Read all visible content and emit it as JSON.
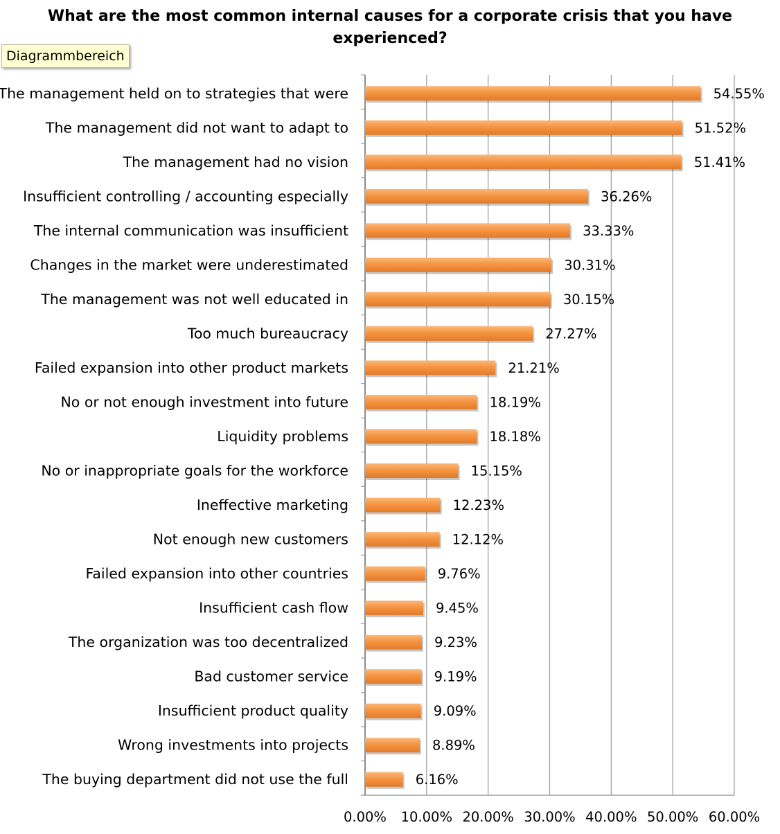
{
  "tooltip": "Diagrammbereich",
  "chart_data": {
    "type": "bar",
    "orientation": "horizontal",
    "title": "What are the most common internal causes for a corporate crisis that you have experienced?",
    "title_lines": [
      "What are the most common internal causes for a corporate crisis that you have",
      "experienced?"
    ],
    "xlabel": "",
    "ylabel": "",
    "xlim": [
      0,
      60
    ],
    "grid": true,
    "bar_color": "#f59541",
    "ticks": [
      "0.00%",
      "10.00%",
      "20.00%",
      "30.00%",
      "40.00%",
      "50.00%",
      "60.00%"
    ],
    "categories": [
      "The management held on to strategies that were",
      "The management did not want to adapt to",
      "The management had no vision",
      "Insufficient controlling / accounting especially",
      "The internal communication was insufficient",
      "Changes in the market were underestimated",
      "The management was not well educated in",
      "Too much bureaucracy",
      "Failed expansion into other product markets",
      "No or not enough investment into future",
      "Liquidity problems",
      "No or inappropriate goals for the workforce",
      "Ineffective marketing",
      "Not enough new customers",
      "Failed expansion into other countries",
      "Insufficient cash flow",
      "The organization was too decentralized",
      "Bad customer service",
      "Insufficient product quality",
      "Wrong investments into projects",
      "The buying department did not use the full"
    ],
    "values": [
      54.55,
      51.52,
      51.41,
      36.26,
      33.33,
      30.31,
      30.15,
      27.27,
      21.21,
      18.19,
      18.18,
      15.15,
      12.23,
      12.12,
      9.76,
      9.45,
      9.23,
      9.19,
      9.09,
      8.89,
      6.16
    ],
    "data_labels": [
      "54.55%",
      "51.52%",
      "51.41%",
      "36.26%",
      "33.33%",
      "30.31%",
      "30.15%",
      "27.27%",
      "21.21%",
      "18.19%",
      "18.18%",
      "15.15%",
      "12.23%",
      "12.12%",
      "9.76%",
      "9.45%",
      "9.23%",
      "9.19%",
      "9.09%",
      "8.89%",
      "6.16%"
    ]
  }
}
